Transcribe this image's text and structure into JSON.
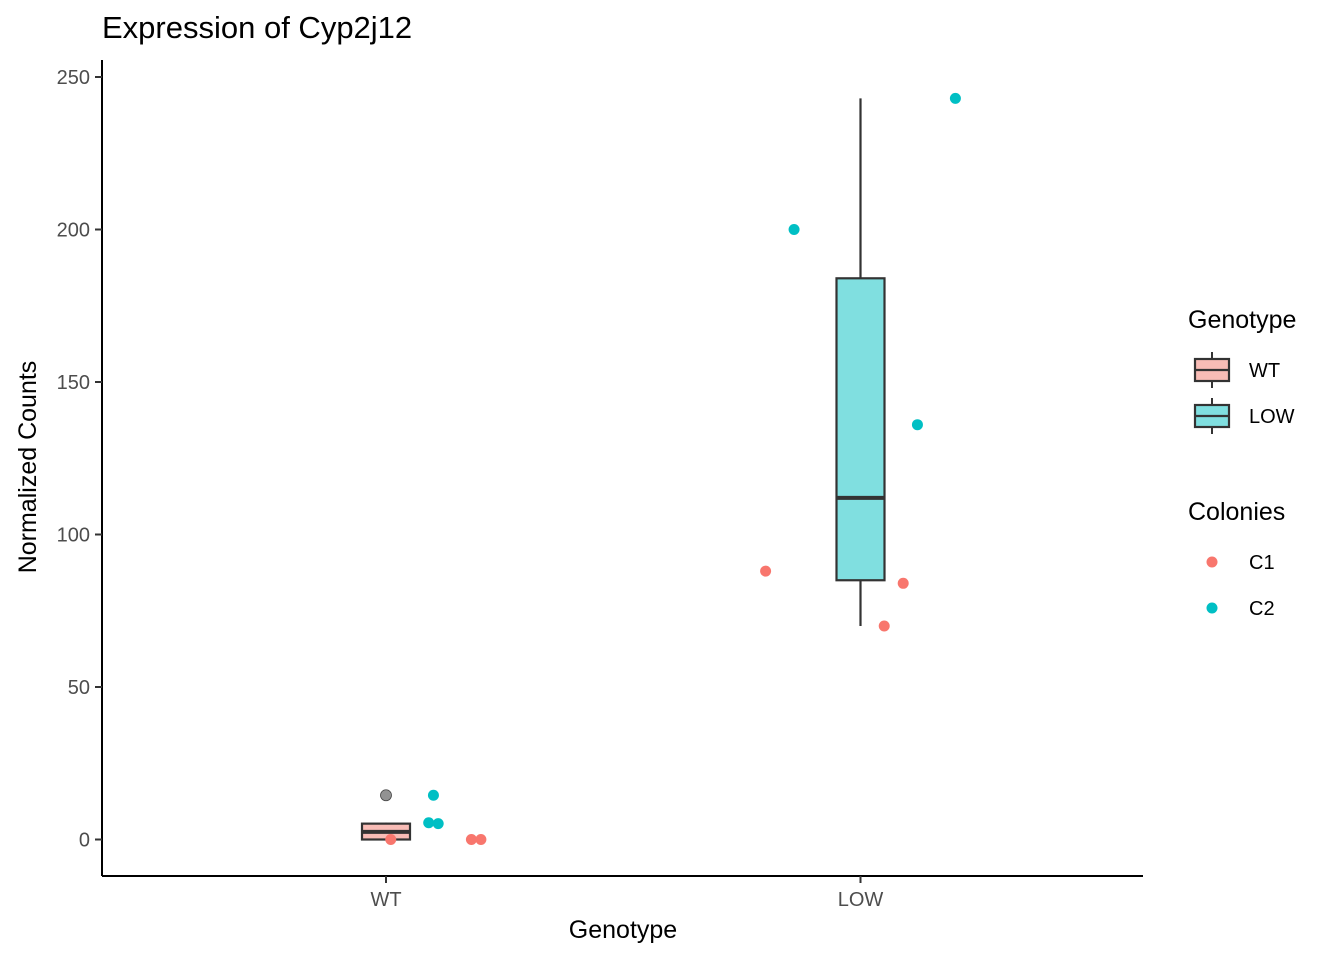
{
  "chart_data": {
    "type": "boxplot",
    "title": "Expression of Cyp2j12",
    "xlabel": "Genotype",
    "ylabel": "Normalized Counts",
    "ylim": [
      -12,
      255
    ],
    "yticks": [
      0,
      50,
      100,
      150,
      200,
      250
    ],
    "categories": [
      "WT",
      "LOW"
    ],
    "grid": false,
    "boxes": [
      {
        "category": "WT",
        "min": 0,
        "q1": 0,
        "median": 2.5,
        "q3": 5.2,
        "max": 5.5,
        "outliers": [
          14.5
        ],
        "fill": "#f8bcb6"
      },
      {
        "category": "LOW",
        "min": 70,
        "q1": 85,
        "median": 112,
        "q3": 184,
        "max": 243,
        "outliers": [],
        "fill": "#80dfe0"
      }
    ],
    "points": [
      {
        "category": "WT",
        "jitter": 0.01,
        "y": 0,
        "colony": "C1"
      },
      {
        "category": "WT",
        "jitter": 0.18,
        "y": 0,
        "colony": "C1"
      },
      {
        "category": "WT",
        "jitter": 0.2,
        "y": 0,
        "colony": "C1"
      },
      {
        "category": "WT",
        "jitter": 0.1,
        "y": 14.5,
        "colony": "C2"
      },
      {
        "category": "WT",
        "jitter": 0.09,
        "y": 5.5,
        "colony": "C2"
      },
      {
        "category": "WT",
        "jitter": 0.11,
        "y": 5.2,
        "colony": "C2"
      },
      {
        "category": "LOW",
        "jitter": -0.2,
        "y": 88,
        "colony": "C1"
      },
      {
        "category": "LOW",
        "jitter": 0.05,
        "y": 70,
        "colony": "C1"
      },
      {
        "category": "LOW",
        "jitter": 0.09,
        "y": 84,
        "colony": "C1"
      },
      {
        "category": "LOW",
        "jitter": -0.14,
        "y": 200,
        "colony": "C2"
      },
      {
        "category": "LOW",
        "jitter": 0.12,
        "y": 136,
        "colony": "C2"
      },
      {
        "category": "LOW",
        "jitter": 0.2,
        "y": 243,
        "colony": "C2"
      }
    ],
    "legends": [
      {
        "title": "Genotype",
        "kind": "box",
        "items": [
          {
            "label": "WT",
            "fill": "#f8bcb6"
          },
          {
            "label": "LOW",
            "fill": "#80dfe0"
          }
        ]
      },
      {
        "title": "Colonies",
        "kind": "point",
        "items": [
          {
            "label": "C1",
            "color": "#f8766d"
          },
          {
            "label": "C2",
            "color": "#00bfc4"
          }
        ]
      }
    ],
    "legend_position": "right",
    "colors": {
      "C1": "#f8766d",
      "C2": "#00bfc4",
      "outlier": "#7f7f7f",
      "box_stroke": "#333333"
    }
  }
}
